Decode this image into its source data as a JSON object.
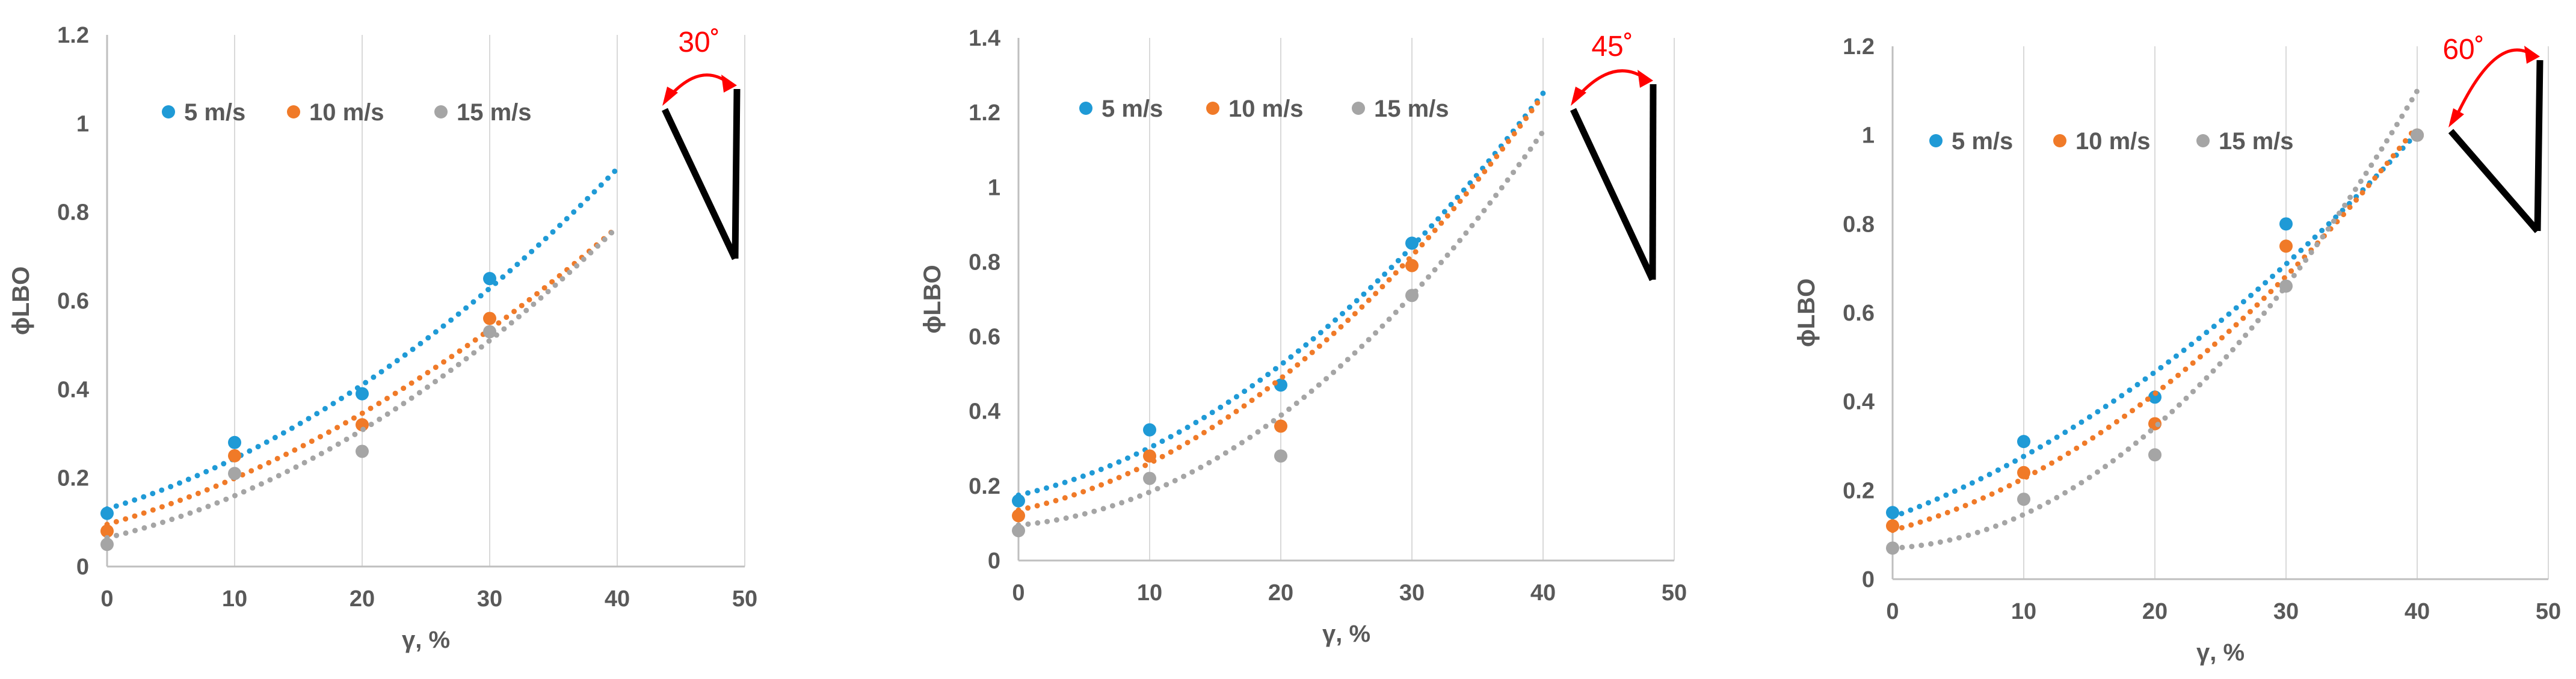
{
  "chart_data": [
    {
      "type": "scatter",
      "title": "",
      "xlabel": "γ, %",
      "ylabel": "ϕLBO",
      "xlim": [
        0,
        50
      ],
      "ylim": [
        0,
        1.2
      ],
      "xticks": [
        0,
        10,
        20,
        30,
        40,
        50
      ],
      "yticks": [
        0,
        0.2,
        0.4,
        0.6,
        0.8,
        1,
        1.2
      ],
      "xtick_labels": [
        "0",
        "10",
        "20",
        "30",
        "40",
        "50"
      ],
      "ytick_labels": [
        "0",
        "0.2",
        "0.4",
        "0.6",
        "0.8",
        "1",
        "1.2"
      ],
      "grid": "vertical",
      "legend": "top-left",
      "angle_label": "30˚",
      "angle_deg": 30,
      "series": [
        {
          "name": "5 m/s",
          "color": "#1f9ad6",
          "x": [
            0,
            10,
            20,
            30
          ],
          "y": [
            0.12,
            0.28,
            0.39,
            0.65
          ],
          "trend": {
            "kind": "poly2",
            "coef": [
              0.13,
              0.0088,
              0.00026
            ],
            "x_range": [
              0,
              40
            ]
          }
        },
        {
          "name": "10 m/s",
          "color": "#f07a28",
          "x": [
            0,
            10,
            20,
            30
          ],
          "y": [
            0.08,
            0.25,
            0.32,
            0.56
          ],
          "trend": {
            "kind": "poly2",
            "coef": [
              0.095,
              0.0083,
              0.000212
            ],
            "x_range": [
              0,
              40
            ]
          }
        },
        {
          "name": "15 m/s",
          "color": "#a5a5a5",
          "x": [
            0,
            10,
            20,
            30
          ],
          "y": [
            0.05,
            0.21,
            0.26,
            0.53
          ],
          "trend": {
            "kind": "poly2",
            "coef": [
              0.065,
              0.0068,
              0.000268
            ],
            "x_range": [
              0,
              40
            ]
          }
        }
      ]
    },
    {
      "type": "scatter",
      "title": "",
      "xlabel": "γ, %",
      "ylabel": "ϕLBO",
      "xlim": [
        0,
        50
      ],
      "ylim": [
        0,
        1.4
      ],
      "xticks": [
        0,
        10,
        20,
        30,
        40,
        50
      ],
      "yticks": [
        0,
        0.2,
        0.4,
        0.6,
        0.8,
        1,
        1.2,
        1.4
      ],
      "xtick_labels": [
        "0",
        "10",
        "20",
        "30",
        "40",
        "50"
      ],
      "ytick_labels": [
        "0",
        "0.2",
        "0.4",
        "0.6",
        "0.8",
        "1",
        "1.2",
        "1.4"
      ],
      "grid": "vertical",
      "legend": "top-left",
      "angle_label": "45˚",
      "angle_deg": 45,
      "series": [
        {
          "name": "5 m/s",
          "color": "#1f9ad6",
          "x": [
            0,
            10,
            20,
            30
          ],
          "y": [
            0.16,
            0.35,
            0.47,
            0.85
          ],
          "trend": {
            "kind": "poly2",
            "coef": [
              0.175,
              0.008,
              0.000473
            ],
            "x_range": [
              0,
              40
            ]
          }
        },
        {
          "name": "10 m/s",
          "color": "#f07a28",
          "x": [
            0,
            10,
            20,
            30
          ],
          "y": [
            0.12,
            0.28,
            0.36,
            0.79
          ],
          "trend": {
            "kind": "poly2",
            "coef": [
              0.135,
              0.0075,
              0.000507
            ],
            "x_range": [
              0,
              40
            ]
          }
        },
        {
          "name": "15 m/s",
          "color": "#a5a5a5",
          "x": [
            0,
            10,
            20,
            30
          ],
          "y": [
            0.08,
            0.22,
            0.28,
            0.71
          ],
          "trend": {
            "kind": "poly2",
            "coef": [
              0.095,
              0.003,
              0.000584
            ],
            "x_range": [
              0,
              40
            ]
          }
        }
      ]
    },
    {
      "type": "scatter",
      "title": "",
      "xlabel": "γ, %",
      "ylabel": "ϕLBO",
      "xlim": [
        0,
        50
      ],
      "ylim": [
        0,
        1.2
      ],
      "xticks": [
        0,
        10,
        20,
        30,
        40,
        50
      ],
      "yticks": [
        0,
        0.2,
        0.4,
        0.6,
        0.8,
        1,
        1.2
      ],
      "xtick_labels": [
        "0",
        "10",
        "20",
        "30",
        "40",
        "50"
      ],
      "ytick_labels": [
        "0",
        "0.2",
        "0.4",
        "0.6",
        "0.8",
        "1",
        "1.2"
      ],
      "grid": "vertical",
      "legend": "top-left",
      "angle_label": "60˚",
      "angle_deg": 60,
      "series": [
        {
          "name": "5 m/s",
          "color": "#1f9ad6",
          "x": [
            0,
            10,
            20,
            30,
            40
          ],
          "y": [
            0.15,
            0.31,
            0.41,
            0.8,
            1.0
          ],
          "trend": {
            "kind": "poly2",
            "coef": [
              0.14,
              0.011,
              0.000266
            ],
            "x_range": [
              0,
              40
            ]
          }
        },
        {
          "name": "10 m/s",
          "color": "#f07a28",
          "x": [
            0,
            10,
            20,
            30,
            40
          ],
          "y": [
            0.12,
            0.24,
            0.35,
            0.75,
            1.0
          ],
          "trend": {
            "kind": "poly2",
            "coef": [
              0.11,
              0.008,
              0.000369
            ],
            "x_range": [
              0,
              40
            ]
          }
        },
        {
          "name": "15 m/s",
          "color": "#a5a5a5",
          "x": [
            0,
            10,
            20,
            30,
            40
          ],
          "y": [
            0.07,
            0.18,
            0.28,
            0.66,
            1.0
          ],
          "trend": {
            "kind": "poly2",
            "coef": [
              0.07,
              0.0015,
              0.000606
            ],
            "x_range": [
              0,
              40
            ]
          }
        }
      ]
    }
  ]
}
